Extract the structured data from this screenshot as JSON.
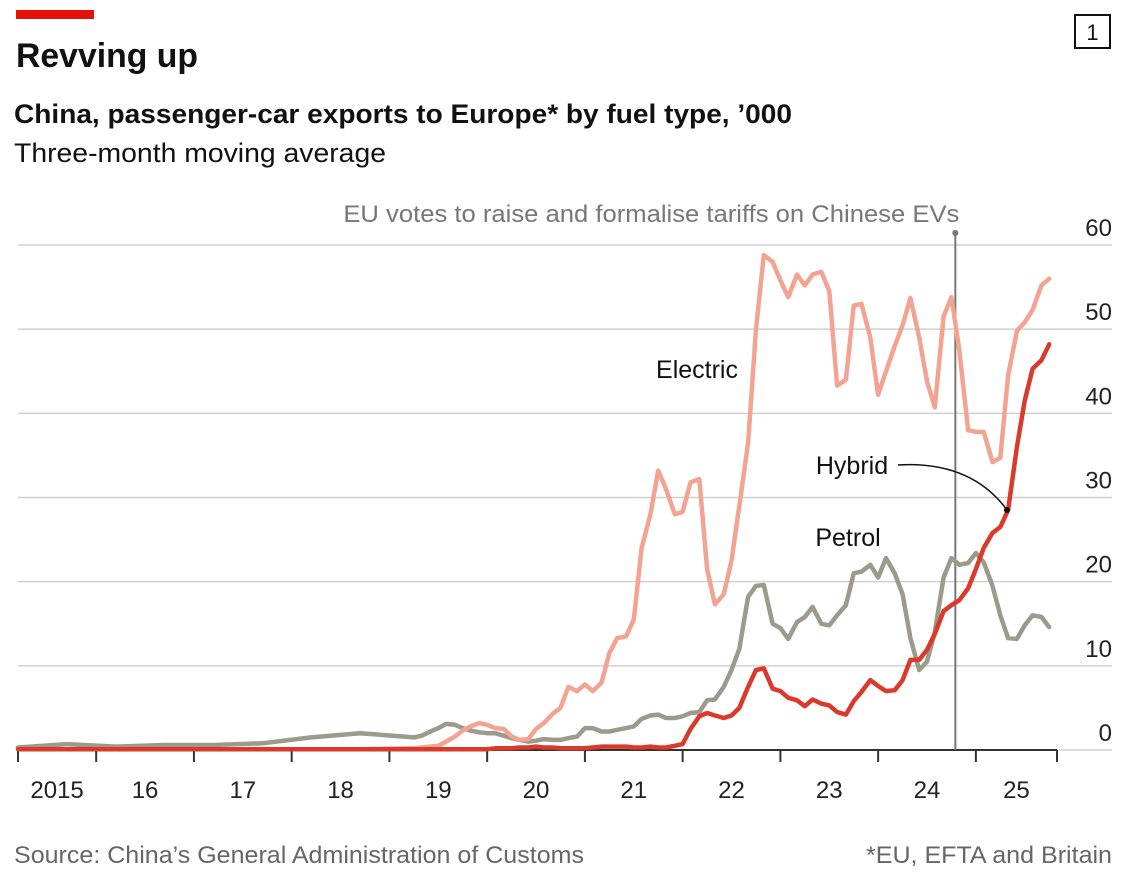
{
  "chart_data": {
    "type": "line",
    "chart_number": "1",
    "title": "Revving up",
    "subtitle": "China, passenger-car exports to Europe* by fuel type, ’000",
    "note": "Three-month moving average",
    "source": "Source: China’s General Administration of Customs",
    "footnote": "*EU, EFTA and Britain",
    "annotation": {
      "x": 2024.79,
      "label": "EU votes to raise and formalise tariffs on Chinese EVs"
    },
    "xlim": [
      2015.2,
      2025.83
    ],
    "xticks": [
      {
        "value": 2015,
        "label": "2015"
      },
      {
        "value": 2016,
        "label": "16"
      },
      {
        "value": 2017,
        "label": "17"
      },
      {
        "value": 2018,
        "label": "18"
      },
      {
        "value": 2019,
        "label": "19"
      },
      {
        "value": 2020,
        "label": "20"
      },
      {
        "value": 2021,
        "label": "21"
      },
      {
        "value": 2022,
        "label": "22"
      },
      {
        "value": 2023,
        "label": "23"
      },
      {
        "value": 2024,
        "label": "24"
      },
      {
        "value": 2025,
        "label": "25"
      }
    ],
    "ylim": [
      0,
      60
    ],
    "yticks": [
      0,
      10,
      20,
      30,
      40,
      50,
      60
    ],
    "grid": true,
    "x": [
      2015.2,
      2015.7,
      2016.2,
      2016.7,
      2017.2,
      2017.7,
      2018.2,
      2018.7,
      2019.25,
      2019.33,
      2019.42,
      2019.5,
      2019.58,
      2019.67,
      2019.75,
      2019.83,
      2019.92,
      2020,
      2020.08,
      2020.17,
      2020.25,
      2020.33,
      2020.42,
      2020.5,
      2020.58,
      2020.67,
      2020.75,
      2020.83,
      2020.92,
      2021,
      2021.08,
      2021.17,
      2021.25,
      2021.33,
      2021.42,
      2021.5,
      2021.58,
      2021.67,
      2021.75,
      2021.83,
      2021.92,
      2022,
      2022.08,
      2022.17,
      2022.25,
      2022.33,
      2022.42,
      2022.5,
      2022.58,
      2022.67,
      2022.75,
      2022.83,
      2022.92,
      2023,
      2023.08,
      2023.17,
      2023.25,
      2023.33,
      2023.42,
      2023.5,
      2023.58,
      2023.67,
      2023.75,
      2023.83,
      2023.92,
      2024,
      2024.08,
      2024.17,
      2024.25,
      2024.33,
      2024.42,
      2024.5,
      2024.58,
      2024.67,
      2024.75,
      2024.83,
      2024.92,
      2025,
      2025.08,
      2025.17,
      2025.25,
      2025.33,
      2025.42,
      2025.5,
      2025.58,
      2025.67,
      2025.75
    ],
    "series": [
      {
        "name": "Petrol",
        "color": "#9c9a8a",
        "values": [
          0.3,
          0.7,
          0.4,
          0.6,
          0.6,
          0.8,
          1.5,
          2,
          1.5,
          1.7,
          2.2,
          2.6,
          3.1,
          3,
          2.6,
          2.3,
          2.1,
          2,
          2,
          1.7,
          1.4,
          1.2,
          1,
          1.1,
          1.3,
          1.2,
          1.2,
          1.4,
          1.6,
          2.6,
          2.6,
          2.2,
          2.2,
          2.4,
          2.6,
          2.8,
          3.7,
          4.1,
          4.2,
          3.8,
          3.8,
          4,
          4.4,
          4.5,
          5.9,
          6,
          7.5,
          9.5,
          12,
          18.2,
          19.5,
          19.6,
          15,
          14.5,
          13.2,
          15.2,
          15.8,
          17,
          15,
          14.8,
          16,
          17.2,
          21,
          21.2,
          22,
          20.5,
          22.8,
          21,
          18.5,
          13.3,
          9.5,
          10.5,
          14,
          20.5,
          22.8,
          22,
          22.2,
          23.4,
          22.3,
          19.5,
          16,
          13.3,
          13.2,
          14.8,
          16,
          15.8,
          14.6
        ]
      },
      {
        "name": "Electric",
        "color": "#f2a391",
        "values": [
          0.1,
          0.1,
          0.1,
          0.1,
          0.1,
          0.1,
          0.1,
          0.1,
          0.2,
          0.3,
          0.4,
          0.5,
          1,
          1.6,
          2.3,
          2.8,
          3.2,
          3,
          2.6,
          2.5,
          1.6,
          1.2,
          1.3,
          2.5,
          3.2,
          4.3,
          5,
          7.5,
          7,
          7.8,
          7,
          8,
          11.5,
          13.3,
          13.5,
          15.5,
          24,
          28,
          33.2,
          31,
          28,
          28.3,
          31.8,
          32.2,
          21.5,
          17.3,
          18.5,
          22.5,
          29,
          36.5,
          50,
          58.8,
          58,
          55.8,
          53.8,
          56.5,
          55.2,
          56.5,
          56.8,
          54.5,
          43.3,
          44,
          52.8,
          53,
          49,
          42.2,
          45,
          48,
          50.5,
          53.7,
          49,
          43.8,
          40.7,
          51.5,
          53.8,
          47.5,
          38,
          37.8,
          37.8,
          34.2,
          34.7,
          44.5,
          49.8,
          50.8,
          52.3,
          55.2,
          56
        ]
      },
      {
        "name": "Hybrid",
        "color": "#d93a2b",
        "values": [
          0.1,
          0.1,
          0.1,
          0.1,
          0.1,
          0.1,
          0.1,
          0.1,
          0.1,
          0.1,
          0.1,
          0.1,
          0.1,
          0.1,
          0.1,
          0.1,
          0.1,
          0.1,
          0.2,
          0.2,
          0.2,
          0.3,
          0.3,
          0.4,
          0.3,
          0.3,
          0.2,
          0.2,
          0.2,
          0.2,
          0.3,
          0.4,
          0.4,
          0.4,
          0.4,
          0.3,
          0.3,
          0.4,
          0.3,
          0.3,
          0.5,
          0.7,
          2.5,
          4,
          4.4,
          4.1,
          3.8,
          4.1,
          5,
          7.5,
          9.5,
          9.7,
          7.3,
          7,
          6.2,
          5.9,
          5.2,
          6,
          5.5,
          5.3,
          4.5,
          4.2,
          5.8,
          6.9,
          8.3,
          7.6,
          7,
          7.1,
          8.3,
          10.7,
          10.7,
          11.9,
          13.8,
          16.5,
          17.2,
          17.8,
          19.2,
          21.5,
          24,
          25.8,
          26.5,
          28.5,
          36,
          41.5,
          45.3,
          46.3,
          48.2
        ]
      }
    ]
  }
}
